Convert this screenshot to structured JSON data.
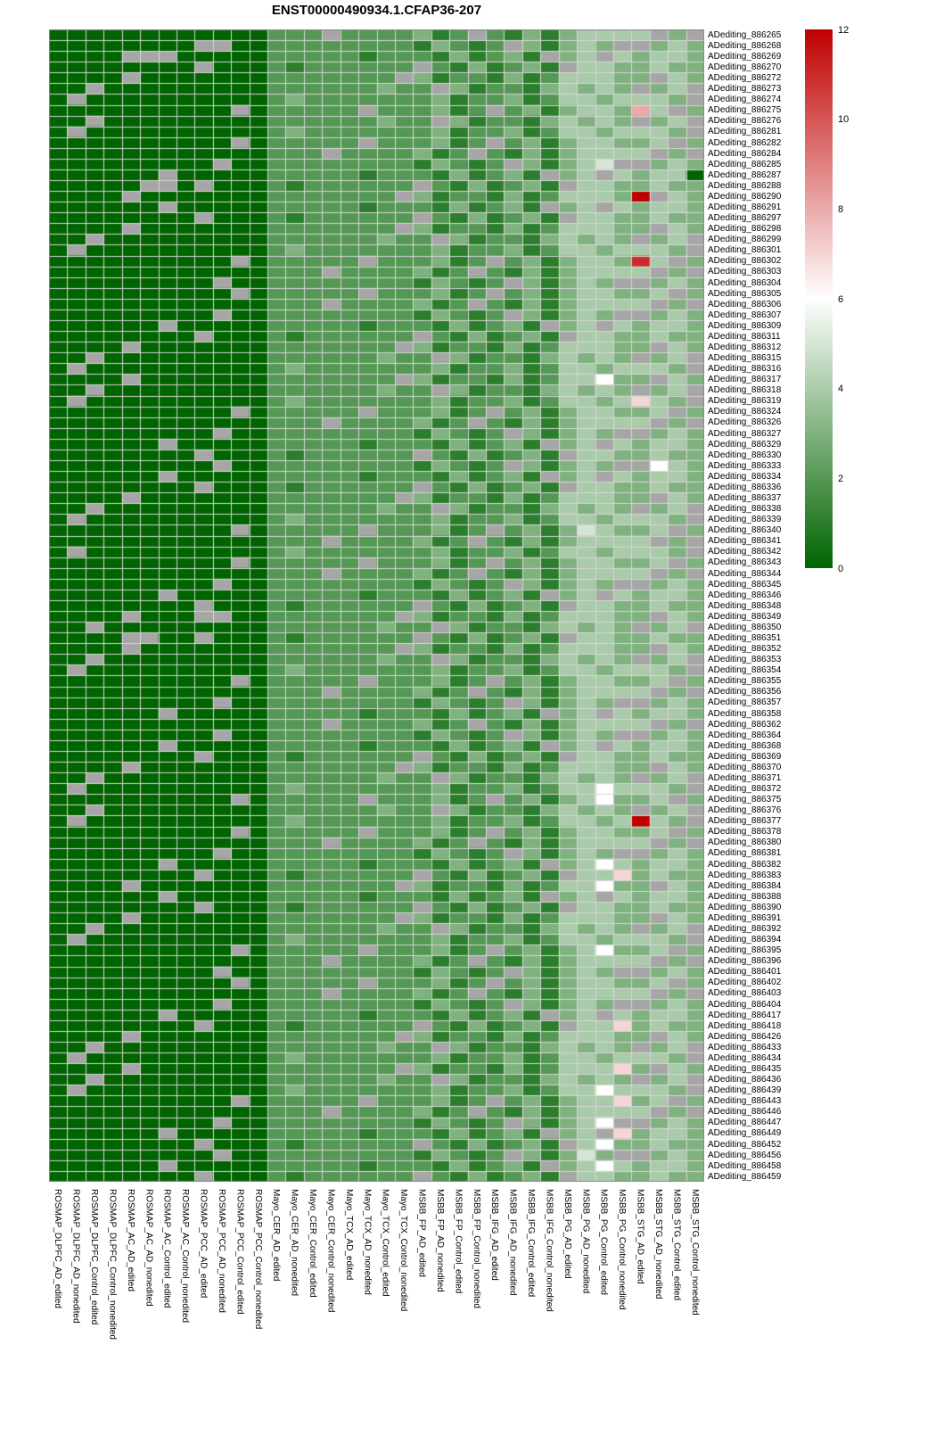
{
  "chart_data": {
    "type": "heatmap",
    "title": "ENST00000490934.1.CFAP36-207",
    "legend_position": "right",
    "value_scale": {
      "min": 0,
      "max": 12,
      "ticks": [
        0,
        2,
        4,
        6,
        8,
        10,
        12
      ]
    },
    "colors": {
      "low": "#006400",
      "mid": "#ffffff",
      "high": "#c00000",
      "na": "#a6a6a6",
      "grid": "#d6d6d6",
      "border": "#8a8a8a"
    },
    "columns": [
      "ROSMAP_DLPFC_AD_edited",
      "ROSMAP_DLPFC_AD_nonedited",
      "ROSMAP_DLPFC_Control_edited",
      "ROSMAP_DLPFC_Control_nonedited",
      "ROSMAP_AC_AD_edited",
      "ROSMAP_AC_AD_nonedited",
      "ROSMAP_AC_Control_edited",
      "ROSMAP_AC_Control_nonedited",
      "ROSMAP_PCC_AD_edited",
      "ROSMAP_PCC_AD_nonedited",
      "ROSMAP_PCC_Control_edited",
      "ROSMAP_PCC_Control_nonedited",
      "Mayo_CER_AD_edited",
      "Mayo_CER_AD_nonedited",
      "Mayo_CER_Control_edited",
      "Mayo_CER_Control_nonedited",
      "Mayo_TCX_AD_edited",
      "Mayo_TCX_AD_nonedited",
      "Mayo_TCX_Control_edited",
      "Mayo_TCX_Control_nonedited",
      "MSBB_FP_AD_edited",
      "MSBB_FP_AD_nonedited",
      "MSBB_FP_Control_edited",
      "MSBB_FP_Control_nonedited",
      "MSBB_IFG_AD_edited",
      "MSBB_IFG_AD_nonedited",
      "MSBB_IFG_Control_edited",
      "MSBB_IFG_Control_nonedited",
      "MSBB_PG_AD_edited",
      "MSBB_PG_AD_nonedited",
      "MSBB_PG_Control_edited",
      "MSBB_PG_Control_nonedited",
      "MSBB_STG_AD_edited",
      "MSBB_STG_AD_nonedited",
      "MSBB_STG_Control_edited",
      "MSBB_STG_Control_nonedited"
    ],
    "rows": [
      "ADediting_886265",
      "ADediting_886268",
      "ADediting_886269",
      "ADediting_886270",
      "ADediting_886272",
      "ADediting_886273",
      "ADediting_886274",
      "ADediting_886275",
      "ADediting_886276",
      "ADediting_886281",
      "ADediting_886282",
      "ADediting_886284",
      "ADediting_886285",
      "ADediting_886287",
      "ADediting_886288",
      "ADediting_886290",
      "ADediting_886291",
      "ADediting_886297",
      "ADediting_886298",
      "ADediting_886299",
      "ADediting_886301",
      "ADediting_886302",
      "ADediting_886303",
      "ADediting_886304",
      "ADediting_886305",
      "ADediting_886306",
      "ADediting_886307",
      "ADediting_886309",
      "ADediting_886311",
      "ADediting_886312",
      "ADediting_886315",
      "ADediting_886316",
      "ADediting_886317",
      "ADediting_886318",
      "ADediting_886319",
      "ADediting_886324",
      "ADediting_886326",
      "ADediting_886327",
      "ADediting_886329",
      "ADediting_886330",
      "ADediting_886333",
      "ADediting_886334",
      "ADediting_886336",
      "ADediting_886337",
      "ADediting_886338",
      "ADediting_886339",
      "ADediting_886340",
      "ADediting_886341",
      "ADediting_886342",
      "ADediting_886343",
      "ADediting_886344",
      "ADediting_886345",
      "ADediting_886346",
      "ADediting_886348",
      "ADediting_886349",
      "ADediting_886350",
      "ADediting_886351",
      "ADediting_886352",
      "ADediting_886353",
      "ADediting_886354",
      "ADediting_886355",
      "ADediting_886356",
      "ADediting_886357",
      "ADediting_886358",
      "ADediting_886362",
      "ADediting_886364",
      "ADediting_886368",
      "ADediting_886369",
      "ADediting_886370",
      "ADediting_886371",
      "ADediting_886372",
      "ADediting_886375",
      "ADediting_886376",
      "ADediting_886377",
      "ADediting_886378",
      "ADediting_886380",
      "ADediting_886381",
      "ADediting_886382",
      "ADediting_886383",
      "ADediting_886384",
      "ADediting_886388",
      "ADediting_886390",
      "ADediting_886391",
      "ADediting_886392",
      "ADediting_886394",
      "ADediting_886395",
      "ADediting_886396",
      "ADediting_886401",
      "ADediting_886402",
      "ADediting_886403",
      "ADediting_886404",
      "ADediting_886417",
      "ADediting_886418",
      "ADediting_886426",
      "ADediting_886433",
      "ADediting_886434",
      "ADediting_886435",
      "ADediting_886436",
      "ADediting_886439",
      "ADediting_886443",
      "ADediting_886446",
      "ADediting_886447",
      "ADediting_886449",
      "ADediting_886452",
      "ADediting_886456",
      "ADediting_886458",
      "ADediting_886459"
    ],
    "cell_encoding": {
      "digits": "0-9 = value",
      "A": 10,
      "B": 11,
      "C": 12,
      ".": "NA (gray)"
    },
    "base_patterns": [
      "000000000000222.2222312.213134444.3.",
      "00.000000000222222322.3122134343.34.",
      "000000.00000222221222131231.34.43443",
      "0000000000.022222.222312.231344334.3",
      "0000.00000002222222.3122131244433.43",
      "000000000.002222222213212.31343..343",
      "0.000000000023222222231223124434443.",
      "00000000.00021222222.2131231.4433433"
    ],
    "row_base_sequence": "05274163163052742741630530527416416305275274163063052741741630520527416316305274274163053052741641630527527",
    "cell_overrides": [
      [
        1,
        8,
        "."
      ],
      [
        2,
        4,
        "."
      ],
      [
        2,
        5,
        "."
      ],
      [
        7,
        32,
        "8"
      ],
      [
        12,
        30,
        "5"
      ],
      [
        13,
        35,
        "0"
      ],
      [
        14,
        5,
        "."
      ],
      [
        14,
        6,
        "."
      ],
      [
        15,
        32,
        "C"
      ],
      [
        21,
        32,
        "B"
      ],
      [
        32,
        30,
        "6"
      ],
      [
        34,
        32,
        "7"
      ],
      [
        40,
        33,
        "6"
      ],
      [
        46,
        29,
        "5"
      ],
      [
        54,
        8,
        "."
      ],
      [
        54,
        9,
        "."
      ],
      [
        56,
        4,
        "."
      ],
      [
        56,
        5,
        "."
      ],
      [
        70,
        30,
        "6"
      ],
      [
        71,
        30,
        "6"
      ],
      [
        73,
        32,
        "C"
      ],
      [
        77,
        30,
        "6"
      ],
      [
        78,
        31,
        "7"
      ],
      [
        79,
        30,
        "6"
      ],
      [
        85,
        30,
        "6"
      ],
      [
        92,
        31,
        "7"
      ],
      [
        96,
        31,
        "7"
      ],
      [
        98,
        30,
        "6"
      ],
      [
        99,
        31,
        "7"
      ],
      [
        101,
        30,
        "6"
      ],
      [
        102,
        31,
        "7"
      ],
      [
        103,
        30,
        "6"
      ],
      [
        104,
        29,
        "5"
      ],
      [
        105,
        30,
        "6"
      ]
    ]
  }
}
